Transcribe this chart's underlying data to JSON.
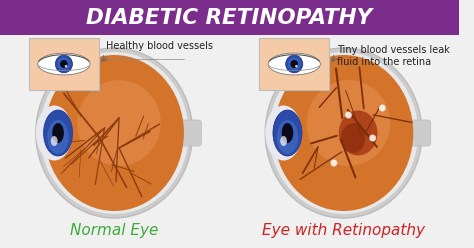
{
  "title": "DIABETIC RETINOPATHY",
  "title_bg": "#7B2D8B",
  "title_color": "#FFFFFF",
  "bg_color": "#F0F0F0",
  "label_left": "Normal Eye",
  "label_right": "Eye with Retinopathy",
  "label_left_color": "#3DAA3D",
  "label_right_color": "#CC2222",
  "annotation_left": "Healthy blood vessels",
  "annotation_right": "Tiny blood vessels leak\nfluid into the retina",
  "annotation_color": "#222222",
  "inset_bg": "#F5CBA7",
  "sclera_color": "#CCCCCC",
  "sclera_inner": "#E8E8E8",
  "retina_orange": "#D4742A",
  "retina_light": "#E8955A",
  "iris_dark": "#1A2E7A",
  "iris_mid": "#2A4BAA",
  "iris_light": "#4A7ACC",
  "pupil_color": "#0A0A1A",
  "vessel_color": "#8B3A10",
  "vessel_color2": "#7A2E08",
  "damage_color": "#A03010",
  "white_spot": "#FFFFFF",
  "figsize": [
    4.74,
    2.48
  ],
  "dpi": 100
}
